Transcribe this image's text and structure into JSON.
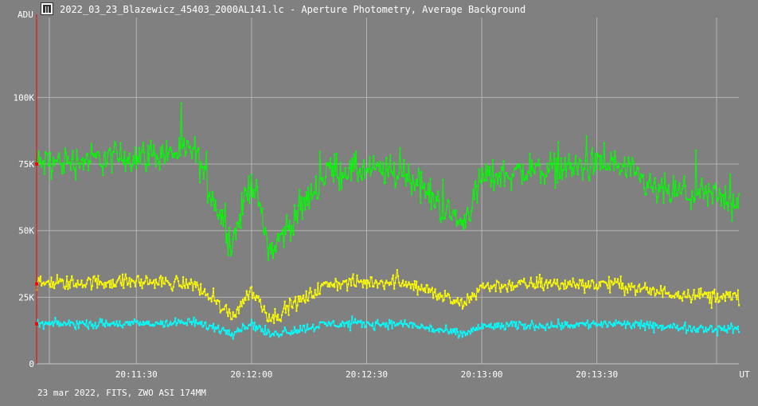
{
  "window": {
    "title": "2022_03_23_Blazewicz_45403_2000AL141.lc - Aperture Photometry, Average Background",
    "icon": "app-icon"
  },
  "footer": {
    "text": "23 mar 2022, FITS, ZWO ASI 174MM"
  },
  "chart_data": {
    "type": "line",
    "title": "2022_03_23_Blazewicz_45403_2000AL141.lc - Aperture Photometry, Average Background",
    "ylabel": "ADU",
    "xlabel": "UT",
    "ylim": [
      0,
      130000
    ],
    "yticks": [
      0,
      25000,
      50000,
      75000,
      100000
    ],
    "ytick_labels": [
      "0",
      "25K",
      "50K",
      "75K",
      "100K"
    ],
    "x_range": [
      "20:11:04",
      "20:14:07"
    ],
    "xticks": [
      "20:11:30",
      "20:12:00",
      "20:12:30",
      "20:13:00",
      "20:13:30"
    ],
    "grid": true,
    "background": "#808080",
    "grid_color": "#b4b4b4",
    "cursor_color": "#ff0000",
    "markers": true,
    "series": [
      {
        "color": "#00ff00",
        "trend": {
          "x": [
            "20:11:04",
            "20:11:30",
            "20:11:45",
            "20:11:55",
            "20:12:00",
            "20:12:05",
            "20:12:20",
            "20:12:40",
            "20:12:55",
            "20:13:00",
            "20:13:15",
            "20:13:35",
            "20:13:45",
            "20:14:07"
          ],
          "y": [
            75000,
            78000,
            80000,
            45000,
            70000,
            42000,
            73000,
            72000,
            52000,
            70000,
            73000,
            75000,
            65000,
            62000
          ]
        },
        "scatter": 9000
      },
      {
        "color": "#ffff00",
        "trend": {
          "x": [
            "20:11:04",
            "20:11:30",
            "20:11:45",
            "20:11:55",
            "20:12:00",
            "20:12:05",
            "20:12:20",
            "20:12:40",
            "20:12:55",
            "20:13:00",
            "20:13:15",
            "20:13:35",
            "20:13:45",
            "20:14:07"
          ],
          "y": [
            30000,
            31000,
            30000,
            18000,
            28000,
            17000,
            30000,
            31000,
            22000,
            29000,
            30000,
            30000,
            27000,
            25000
          ]
        },
        "scatter": 4000
      },
      {
        "color": "#00ffff",
        "trend": {
          "x": [
            "20:11:04",
            "20:11:30",
            "20:11:45",
            "20:11:55",
            "20:12:00",
            "20:12:05",
            "20:12:20",
            "20:12:40",
            "20:12:55",
            "20:13:00",
            "20:13:15",
            "20:13:35",
            "20:13:45",
            "20:14:07"
          ],
          "y": [
            15000,
            15000,
            15500,
            12000,
            15000,
            11000,
            15000,
            15000,
            11000,
            14000,
            14500,
            15000,
            14000,
            13000
          ]
        },
        "scatter": 2500
      }
    ]
  }
}
